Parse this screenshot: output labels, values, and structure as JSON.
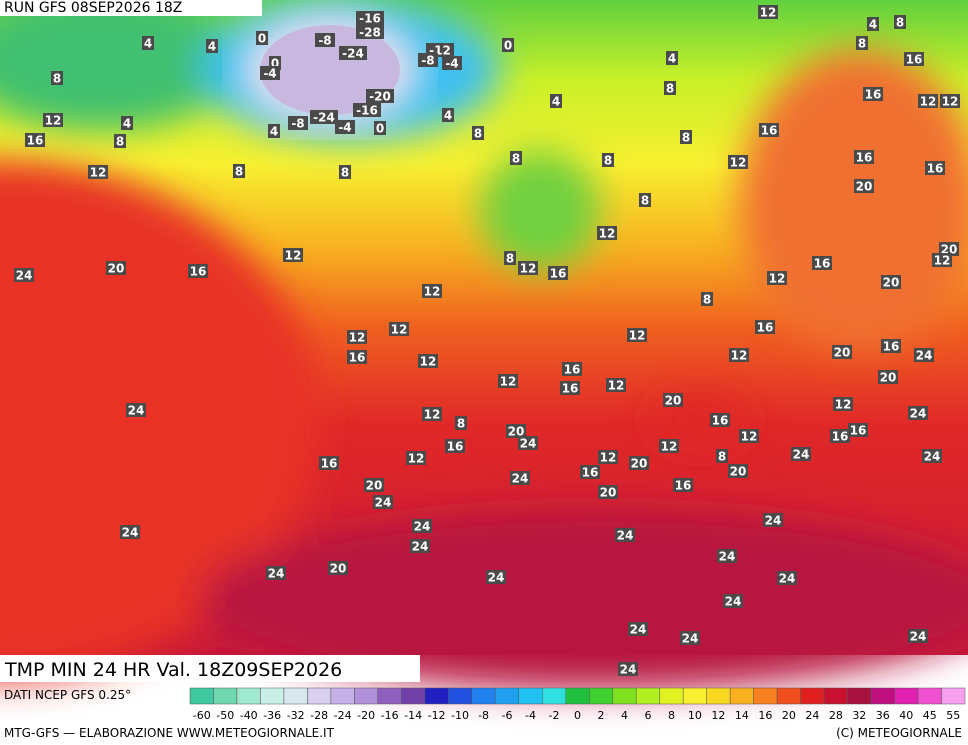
{
  "header": {
    "run": "RUN GFS 08SEP2026 18Z"
  },
  "map": {
    "labels": [
      -16,
      -28,
      -8,
      -24,
      0,
      4,
      4,
      -12,
      -8,
      -4,
      0,
      0,
      -4,
      8,
      -20,
      -16,
      -24,
      -8,
      -4,
      0,
      4,
      4,
      4,
      12,
      4,
      8,
      16,
      8,
      12,
      8,
      8,
      8,
      8,
      8,
      12,
      16,
      12,
      4,
      8,
      8,
      16,
      8,
      4,
      16,
      12,
      12,
      16,
      20,
      16,
      8,
      12,
      12,
      24,
      20,
      16,
      8,
      12,
      16,
      12,
      8,
      12,
      16,
      20,
      20,
      12,
      12,
      12,
      16,
      12,
      12,
      16,
      12,
      20,
      16,
      24,
      12,
      16,
      16,
      12,
      20,
      24,
      12,
      8,
      20,
      24,
      16,
      20,
      16,
      12,
      24,
      12,
      12,
      16,
      16,
      16,
      12,
      12,
      20,
      8,
      24,
      24,
      20,
      24,
      24,
      16,
      16,
      20,
      20,
      24,
      24,
      24,
      24,
      24,
      24,
      20,
      24,
      24,
      24,
      24,
      24,
      24,
      24,
      24
    ]
  },
  "footer": {
    "title": "TMP MIN 24 HR Val. 18Z09SEP2026",
    "source": "DATI NCEP GFS 0.25°",
    "credit": "MTG-GFS — ELABORAZIONE WWW.METEOGIORNALE.IT",
    "copyright": "(C) METEOGIORNALE"
  },
  "colorbar": {
    "ticks": [
      -60,
      -50,
      -40,
      -36,
      -32,
      -28,
      -24,
      -20,
      -16,
      -14,
      -12,
      -10,
      -8,
      -6,
      -4,
      -2,
      0,
      2,
      4,
      6,
      8,
      10,
      12,
      14,
      16,
      20,
      24,
      28,
      32,
      36,
      40,
      45,
      55
    ],
    "colors": [
      "#40c8a0",
      "#70d8b0",
      "#a0e8d0",
      "#c8f0e8",
      "#d8e8f0",
      "#d8d0f0",
      "#c8b0e8",
      "#b090d8",
      "#9060c0",
      "#7040a8",
      "#2020c0",
      "#2050e0",
      "#2080f0",
      "#20a0f0",
      "#20c0f0",
      "#30e0e0",
      "#20c040",
      "#40d030",
      "#80e020",
      "#b0f020",
      "#e0f020",
      "#f8f030",
      "#f8d820",
      "#f8b020",
      "#f88020",
      "#f05020",
      "#e02020",
      "#c81030",
      "#a81040",
      "#c01080",
      "#e020b0",
      "#f050d0",
      "#f8a0f0"
    ]
  }
}
